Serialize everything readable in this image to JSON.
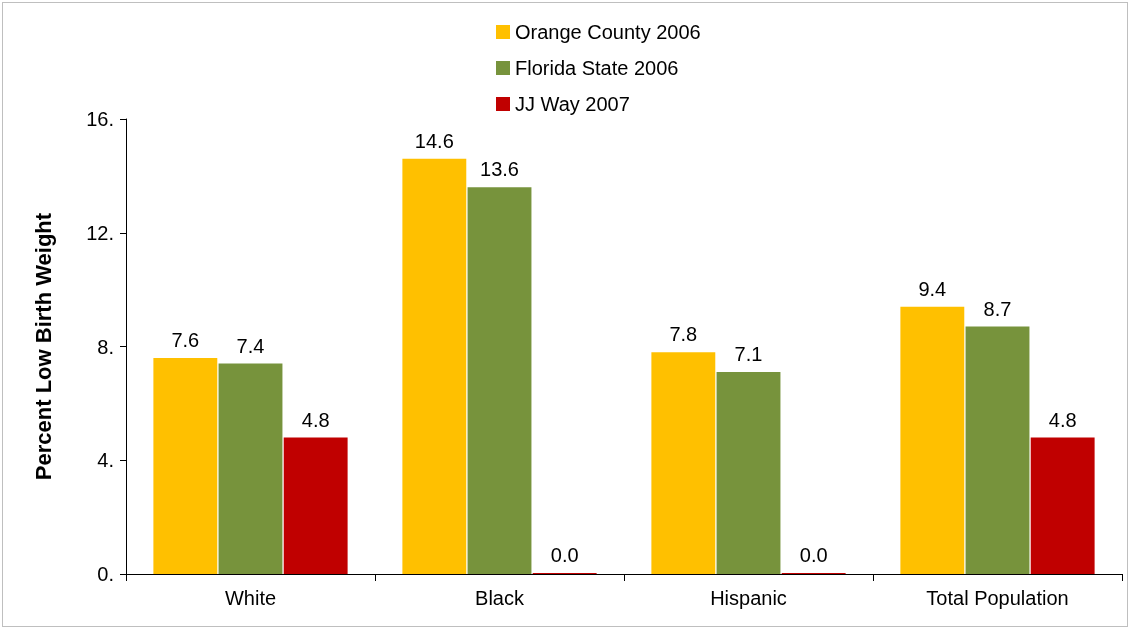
{
  "chart_data": {
    "type": "bar",
    "ylabel": "Percent Low Birth Weight",
    "categories": [
      "White",
      "Black",
      "Hispanic",
      "Total Population"
    ],
    "series": [
      {
        "name": "Orange County 2006",
        "color": "#ffc000",
        "values": [
          7.6,
          14.6,
          7.8,
          9.4
        ],
        "value_labels": [
          "7.6",
          "14.6",
          "7.8",
          "9.4"
        ]
      },
      {
        "name": "Florida State 2006",
        "color": "#77933c",
        "values": [
          7.4,
          13.6,
          7.1,
          8.7
        ],
        "value_labels": [
          "7.4",
          "13.6",
          "7.1",
          "8.7"
        ]
      },
      {
        "name": "JJ Way 2007",
        "color": "#c00000",
        "values": [
          4.8,
          0,
          0,
          4.8
        ],
        "value_labels": [
          "4.8",
          "0.0",
          "0.0",
          "4.8"
        ]
      }
    ],
    "ylim": [
      0,
      16
    ],
    "yticks": [
      {
        "value": 0,
        "label": "0."
      },
      {
        "value": 4,
        "label": "4."
      },
      {
        "value": 8,
        "label": "8."
      },
      {
        "value": 12,
        "label": "12."
      },
      {
        "value": 16,
        "label": "16."
      }
    ],
    "grid": false,
    "legend": "top"
  }
}
